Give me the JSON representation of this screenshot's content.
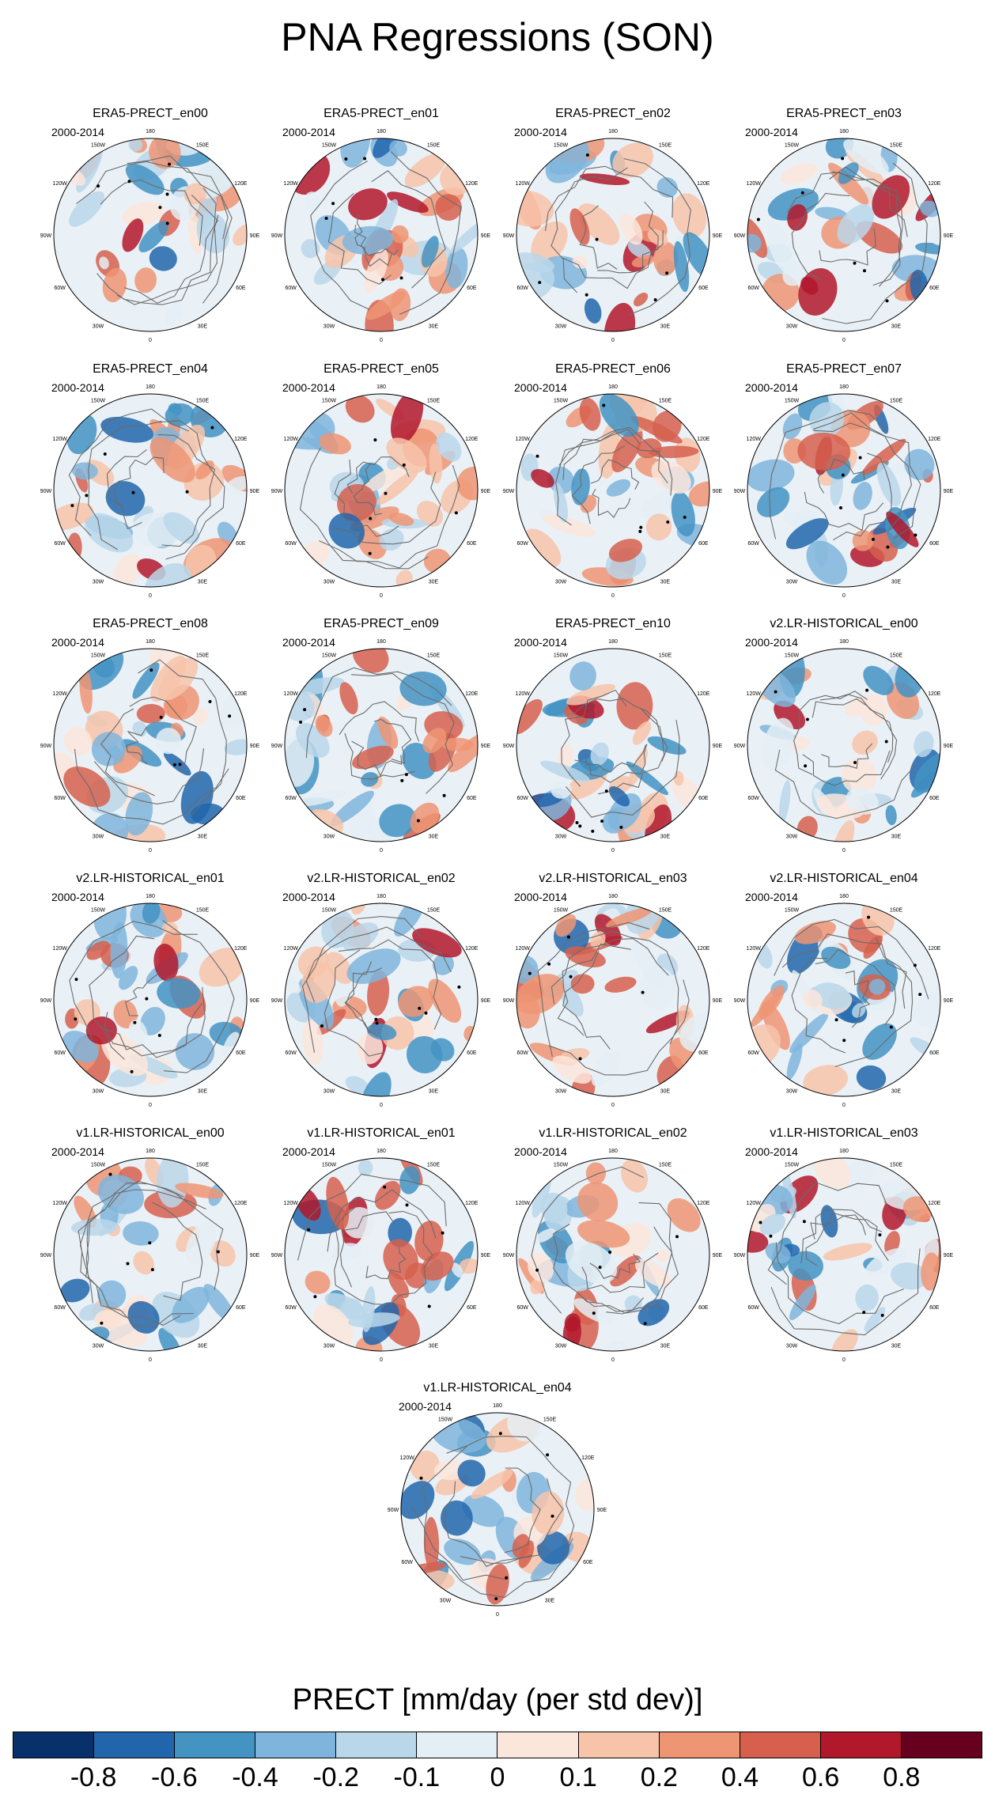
{
  "chart_data": {
    "type": "polar-map-panels",
    "title": "PNA Regressions (SON)",
    "period": "2000-2014",
    "lon_labels": [
      "180",
      "150E",
      "120E",
      "90E",
      "60E",
      "30E",
      "0",
      "30W",
      "60W",
      "90W",
      "120W",
      "150W"
    ],
    "panels": [
      "ERA5-PRECT_en00",
      "ERA5-PRECT_en01",
      "ERA5-PRECT_en02",
      "ERA5-PRECT_en03",
      "ERA5-PRECT_en04",
      "ERA5-PRECT_en05",
      "ERA5-PRECT_en06",
      "ERA5-PRECT_en07",
      "ERA5-PRECT_en08",
      "ERA5-PRECT_en09",
      "ERA5-PRECT_en10",
      "v2.LR-HISTORICAL_en00",
      "v2.LR-HISTORICAL_en01",
      "v2.LR-HISTORICAL_en02",
      "v2.LR-HISTORICAL_en03",
      "v2.LR-HISTORICAL_en04",
      "v1.LR-HISTORICAL_en00",
      "v1.LR-HISTORICAL_en01",
      "v1.LR-HISTORICAL_en02",
      "v1.LR-HISTORICAL_en03",
      "v1.LR-HISTORICAL_en04"
    ],
    "colorbar": {
      "label": "PRECT [mm/day (per std dev)]",
      "levels": [
        "-0.8",
        "-0.6",
        "-0.4",
        "-0.2",
        "-0.1",
        "0",
        "0.1",
        "0.2",
        "0.4",
        "0.6",
        "0.8"
      ],
      "colors": [
        "#08306b",
        "#2166ac",
        "#4393c3",
        "#7fb5dc",
        "#bad7ea",
        "#e4eef5",
        "#fbe6dc",
        "#f7c4aa",
        "#ee9574",
        "#d6604d",
        "#b2182b",
        "#67001f"
      ]
    }
  }
}
